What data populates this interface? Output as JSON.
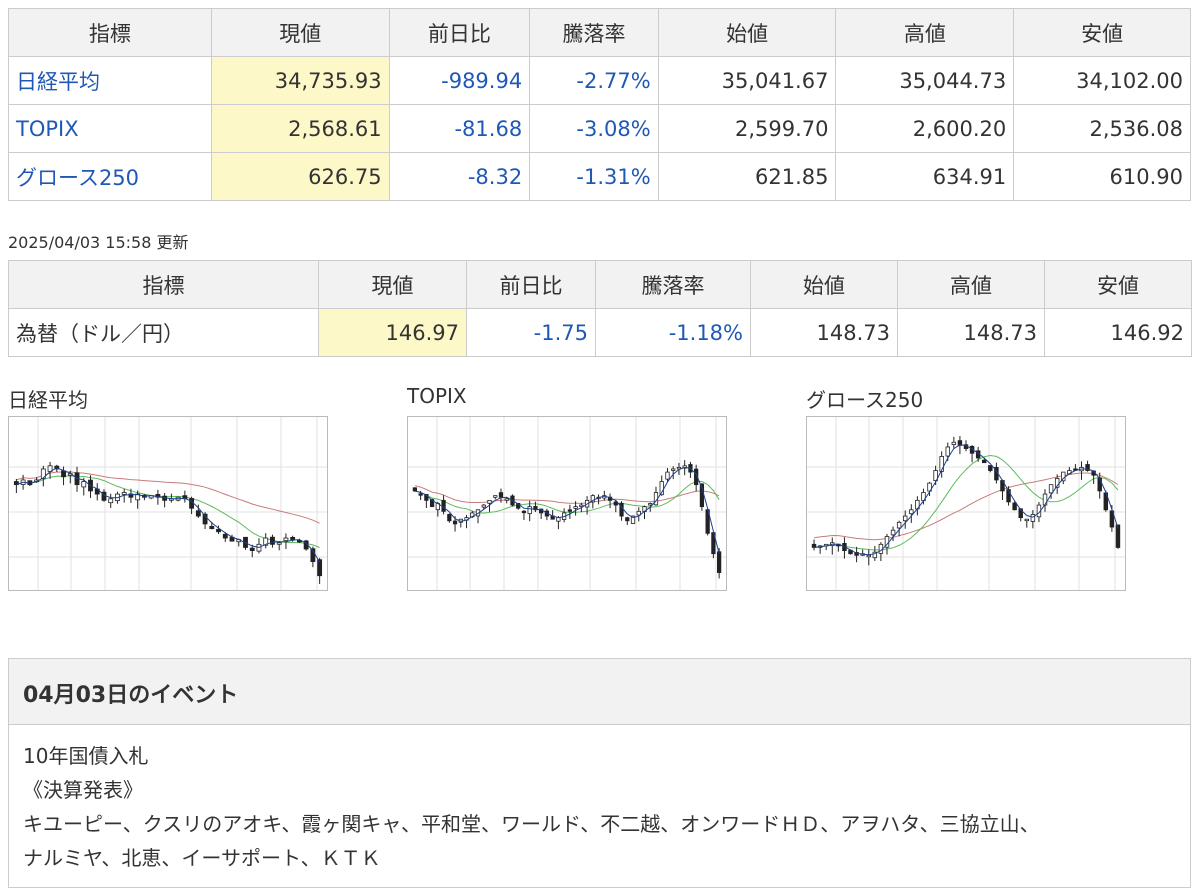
{
  "index_table": {
    "headers": [
      "指標",
      "現値",
      "前日比",
      "騰落率",
      "始値",
      "高値",
      "安値"
    ],
    "rows": [
      {
        "name": "日経平均",
        "current": "34,735.93",
        "change": "-989.94",
        "rate": "-2.77%",
        "open": "35,041.67",
        "high": "35,044.73",
        "low": "34,102.00"
      },
      {
        "name": "TOPIX",
        "current": "2,568.61",
        "change": "-81.68",
        "rate": "-3.08%",
        "open": "2,599.70",
        "high": "2,600.20",
        "low": "2,536.08"
      },
      {
        "name": "グロース250",
        "current": "626.75",
        "change": "-8.32",
        "rate": "-1.31%",
        "open": "621.85",
        "high": "634.91",
        "low": "610.90"
      }
    ]
  },
  "updated": "2025/04/03 15:58 更新",
  "fx_table": {
    "headers": [
      "指標",
      "現値",
      "前日比",
      "騰落率",
      "始値",
      "高値",
      "安値"
    ],
    "rows": [
      {
        "name": "為替（ドル／円）",
        "current": "146.97",
        "change": "-1.75",
        "rate": "-1.18%",
        "open": "148.73",
        "high": "148.73",
        "low": "146.92"
      }
    ]
  },
  "charts": [
    {
      "title": "日経平均",
      "closes": [
        62,
        65,
        62,
        65,
        72,
        74,
        72,
        67,
        69,
        62,
        64,
        58,
        56,
        52,
        53,
        56,
        57,
        54,
        56,
        54,
        55,
        54,
        52,
        53,
        54,
        53,
        47,
        42,
        37,
        34,
        32,
        28,
        26,
        27,
        22,
        20,
        24,
        28,
        24,
        25,
        28,
        27,
        26,
        21,
        13,
        4
      ]
    },
    {
      "title": "TOPIX",
      "closes": [
        58,
        56,
        52,
        48,
        50,
        45,
        39,
        37,
        40,
        41,
        44,
        46,
        49,
        52,
        55,
        54,
        53,
        49,
        47,
        45,
        48,
        46,
        44,
        42,
        40,
        41,
        44,
        45,
        48,
        49,
        52,
        55,
        54,
        55,
        52,
        49,
        42,
        39,
        42,
        45,
        48,
        50,
        57,
        64,
        70,
        72,
        73,
        74,
        70,
        62,
        48,
        31,
        18,
        6
      ]
    },
    {
      "title": "グロース250",
      "closes": [
        22,
        23,
        24,
        25,
        23,
        20,
        18,
        17,
        18,
        17,
        19,
        24,
        29,
        33,
        38,
        42,
        46,
        52,
        57,
        63,
        71,
        80,
        86,
        89,
        87,
        85,
        82,
        79,
        76,
        71,
        65,
        58,
        51,
        46,
        41,
        40,
        43,
        49,
        56,
        62,
        66,
        70,
        71,
        72,
        73,
        71,
        68,
        58,
        46,
        35,
        22
      ]
    }
  ],
  "event": {
    "title": "04月03日のイベント",
    "lines": [
      "10年国債入札",
      "《決算発表》",
      "キユーピー、クスリのアオキ、霞ヶ関キャ、平和堂、ワールド、不二越、オンワードＨＤ、アヲハタ、三協立山、",
      "ナルミヤ、北恵、イーサポート、ＫＴＫ"
    ]
  },
  "colors": {
    "link": "#1f58b5",
    "current_bg": "#fcf8c8",
    "ma5": "#1e3f8c",
    "ma25": "#5dbb5d",
    "ma75": "#c77c7c"
  }
}
